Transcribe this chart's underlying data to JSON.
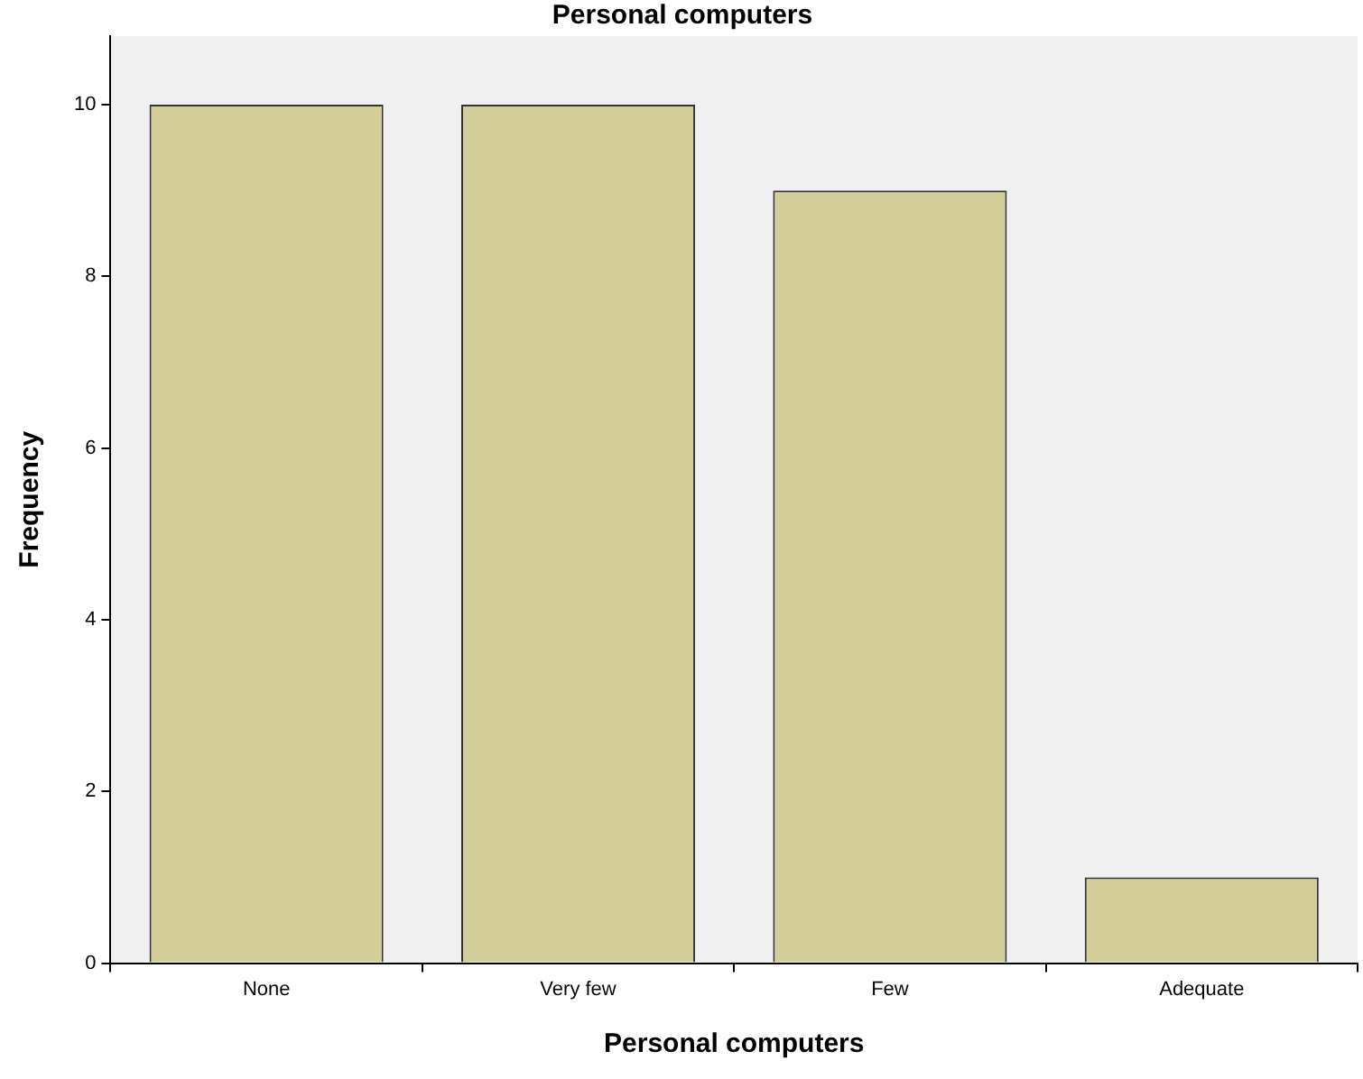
{
  "chart_data": {
    "type": "bar",
    "title": "Personal computers",
    "xlabel": "Personal computers",
    "ylabel": "Frequency",
    "categories": [
      "None",
      "Very few",
      "Few",
      "Adequate"
    ],
    "values": [
      10,
      10,
      9,
      1
    ],
    "color": "#d3ce97",
    "ylim": [
      0,
      10.8
    ],
    "yticks": [
      0,
      2,
      4,
      6,
      8,
      10
    ],
    "grid": false,
    "legend": false
  }
}
